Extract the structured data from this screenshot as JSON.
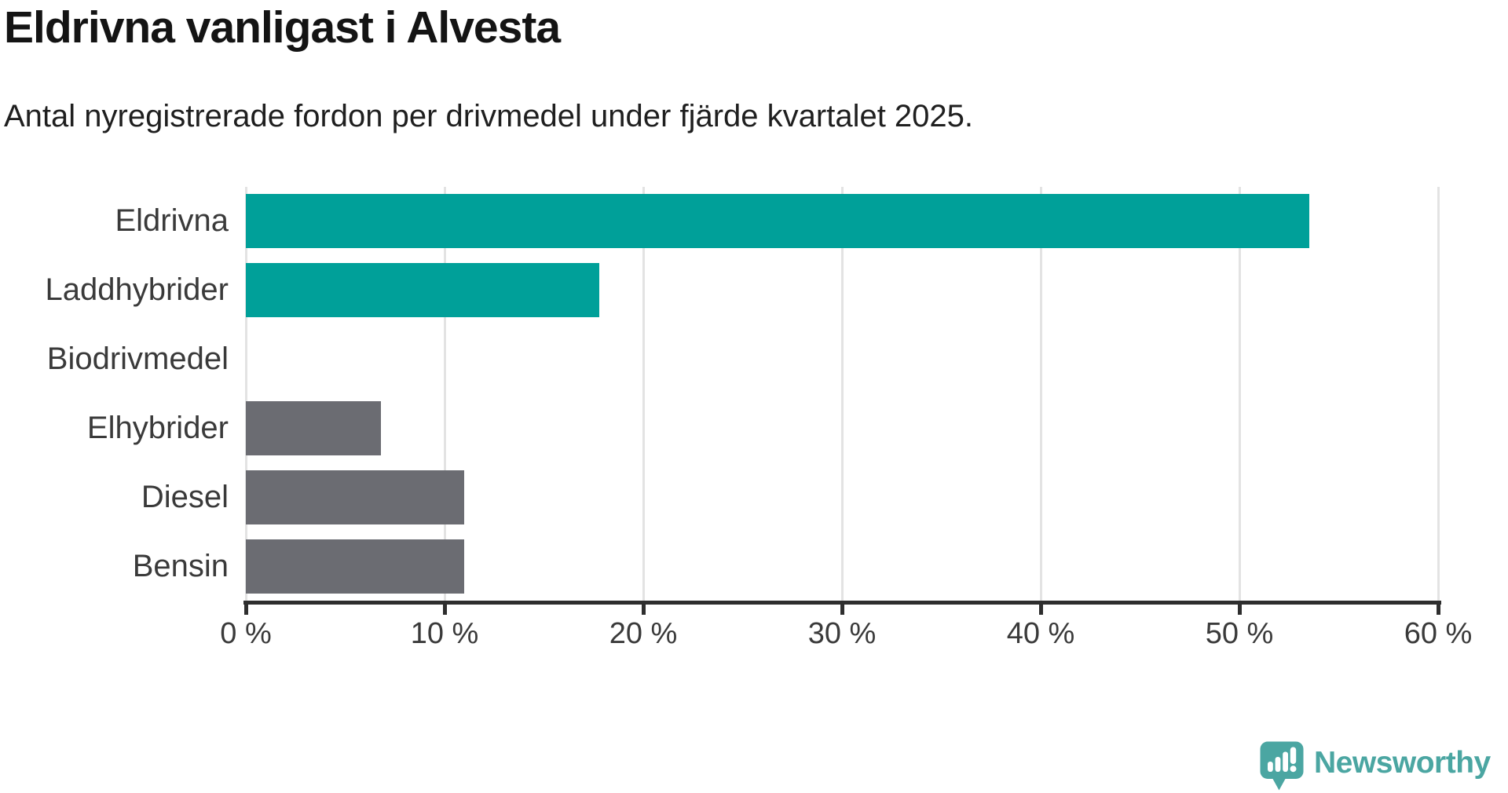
{
  "chart_data": {
    "type": "bar",
    "orientation": "horizontal",
    "title": "Eldrivna vanligast i Alvesta",
    "subtitle": "Antal nyregistrerade fordon per drivmedel under fjärde kvartalet 2025.",
    "categories": [
      "Eldrivna",
      "Laddhybrider",
      "Biodrivmedel",
      "Elhybrider",
      "Diesel",
      "Bensin"
    ],
    "values": [
      53.5,
      17.8,
      0,
      6.8,
      11,
      11
    ],
    "unit": "%",
    "xlim": [
      0,
      60
    ],
    "x_ticks": [
      0,
      10,
      20,
      30,
      40,
      50,
      60
    ],
    "x_tick_labels": [
      "0 %",
      "10 %",
      "20 %",
      "30 %",
      "40 %",
      "50 %",
      "60 %"
    ],
    "grid": "vertical-gridlines-on",
    "legend": "none",
    "bar_colors": [
      "#00a099",
      "#00a099",
      "#6b6c72",
      "#6b6c72",
      "#6b6c72",
      "#6b6c72"
    ]
  },
  "colors": {
    "highlight_teal": "#00a099",
    "neutral_gray": "#6b6c72",
    "axis": "#2e2e2e",
    "gridline": "#e3e3e3",
    "label_text": "#3a3a3a",
    "logo_teal": "#4ba6a2"
  },
  "footer": {
    "logo_text": "Newsworthy"
  }
}
